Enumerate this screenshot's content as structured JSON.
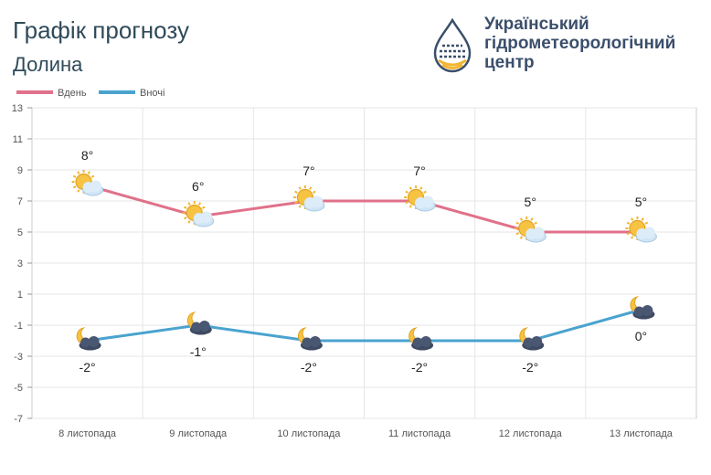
{
  "header": {
    "title": "Графік прогнозу",
    "location": "Долина"
  },
  "org": {
    "line1": "Український",
    "line2": "гідрометеорологічний",
    "line3": "центр"
  },
  "chart_data": {
    "type": "line",
    "categories": [
      "8 листопада",
      "9 листопада",
      "10 листопада",
      "11 листопада",
      "12 листопада",
      "13 листопада"
    ],
    "series": [
      {
        "name": "Вдень",
        "color": "#e0718a",
        "values": [
          8,
          6,
          7,
          7,
          5,
          5
        ],
        "labels": [
          "8°",
          "6°",
          "7°",
          "7°",
          "5°",
          "5°"
        ],
        "icon": "sun-cloud-icon"
      },
      {
        "name": "Вночі",
        "color": "#4aa3cf",
        "values": [
          -2,
          -1,
          -2,
          -2,
          -2,
          0
        ],
        "labels": [
          "-2°",
          "-1°",
          "-2°",
          "-2°",
          "-2°",
          "0°"
        ],
        "icon": "moon-cloud-icon"
      }
    ],
    "yticks": [
      "13",
      "11",
      "9",
      "7",
      "5",
      "3",
      "1",
      "-1",
      "-3",
      "-5",
      "-7"
    ],
    "ylim": [
      -7,
      13
    ],
    "grid": true,
    "legend": "top-left"
  }
}
